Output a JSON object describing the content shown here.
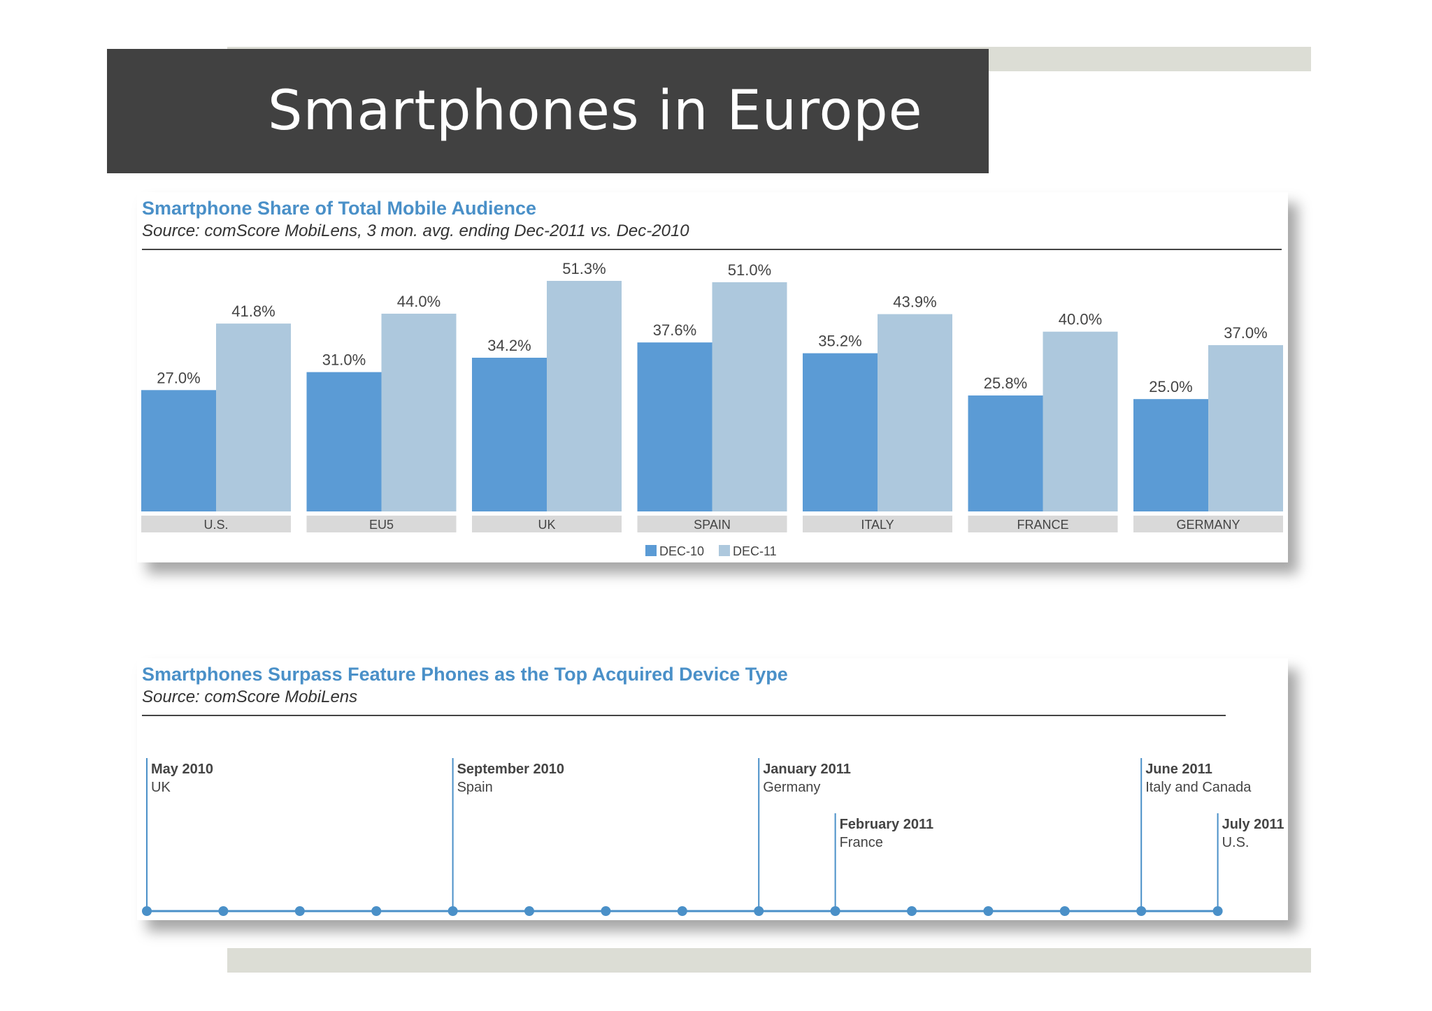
{
  "page": {
    "title": "Smartphones in Europe",
    "colors": {
      "title_bar": "#414141",
      "accent": "#4a90c8",
      "deco": "#dcddd5"
    }
  },
  "bar_panel": {
    "title": "Smartphone Share of Total Mobile Audience",
    "source": "Source: comScore MobiLens, 3 mon. avg. ending Dec-2011 vs. Dec-2010"
  },
  "timeline_panel": {
    "title": "Smartphones Surpass Feature Phones as the Top Acquired Device Type",
    "source": "Source: comScore MobiLens",
    "events": [
      {
        "date": "May 2010",
        "place": "UK",
        "month_index": 0
      },
      {
        "date": "September 2010",
        "place": "Spain",
        "month_index": 4
      },
      {
        "date": "January 2011",
        "place": "Germany",
        "month_index": 8
      },
      {
        "date": "February 2011",
        "place": "France",
        "month_index": 9
      },
      {
        "date": "June 2011",
        "place": "Italy and Canada",
        "month_index": 13
      },
      {
        "date": "July 2011",
        "place": "U.S.",
        "month_index": 14
      }
    ],
    "month_count": 15,
    "line_color": "#4a90c8"
  },
  "chart_data": {
    "type": "bar",
    "title": "Smartphone Share of Total Mobile Audience",
    "subtitle": "Source: comScore MobiLens, 3 mon. avg. ending Dec-2011 vs. Dec-2010",
    "categories": [
      "U.S.",
      "EU5",
      "UK",
      "SPAIN",
      "ITALY",
      "FRANCE",
      "GERMANY"
    ],
    "series": [
      {
        "name": "DEC-10",
        "color": "#5b9bd5",
        "values": [
          27.0,
          31.0,
          34.2,
          37.6,
          35.2,
          25.8,
          25.0
        ],
        "labels": [
          "27.0%",
          "31.0%",
          "34.2%",
          "37.6%",
          "35.2%",
          "25.8%",
          "25.0%"
        ]
      },
      {
        "name": "DEC-11",
        "color": "#adc8dd",
        "values": [
          41.8,
          44.0,
          51.3,
          51.0,
          43.9,
          40.0,
          37.0
        ],
        "labels": [
          "41.8%",
          "44.0%",
          "51.3%",
          "51.0%",
          "43.9%",
          "40.0%",
          "37.0%"
        ]
      }
    ],
    "ylim": [
      0,
      51.3
    ],
    "grid": false,
    "legend": "bottom-center",
    "category_label_bg": "#d9d9d9"
  }
}
